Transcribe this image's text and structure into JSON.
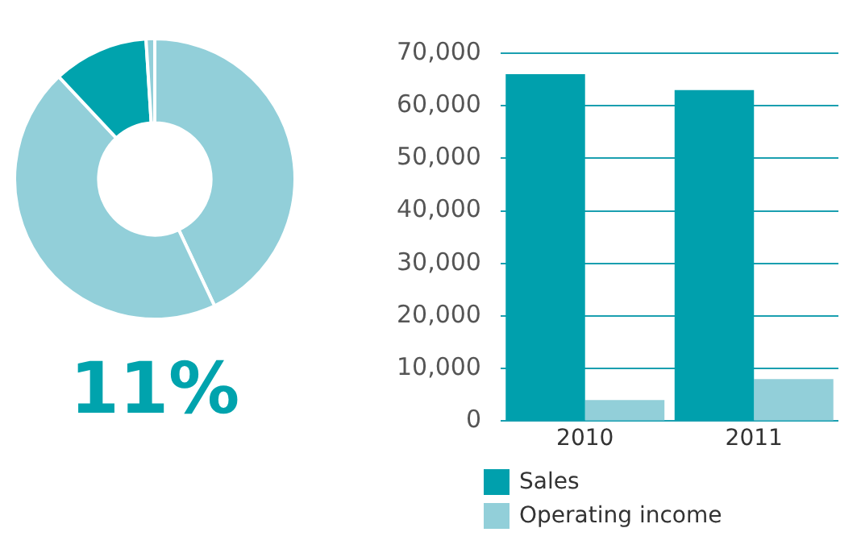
{
  "chart_data": [
    {
      "type": "donut",
      "categories": [
        null,
        null,
        null,
        null
      ],
      "values": [
        43,
        45,
        11,
        1
      ],
      "colors": [
        "#92cfd9",
        "#92cfd9",
        "#00a3ad",
        "#92cfd9"
      ],
      "annotations": [
        "11%"
      ],
      "legend": false
    },
    {
      "type": "bar",
      "categories": [
        "2010",
        "2011"
      ],
      "series": [
        {
          "name": "Sales",
          "color": "#00a0ad",
          "values": [
            66000,
            63000
          ]
        },
        {
          "name": "Operating income",
          "color": "#92cfd9",
          "values": [
            4000,
            8000
          ]
        }
      ],
      "ylim": [
        0,
        70000
      ],
      "yticks": [
        {
          "value": 0,
          "label": "0"
        },
        {
          "value": 10000,
          "label": "10,000"
        },
        {
          "value": 20000,
          "label": "20,000"
        },
        {
          "value": 30000,
          "label": "30,000"
        },
        {
          "value": 40000,
          "label": "40,000"
        },
        {
          "value": 50000,
          "label": "50,000"
        },
        {
          "value": 60000,
          "label": "60,000"
        },
        {
          "value": 70000,
          "label": "70,000"
        }
      ],
      "grid": "y",
      "legend": "bottom"
    }
  ]
}
